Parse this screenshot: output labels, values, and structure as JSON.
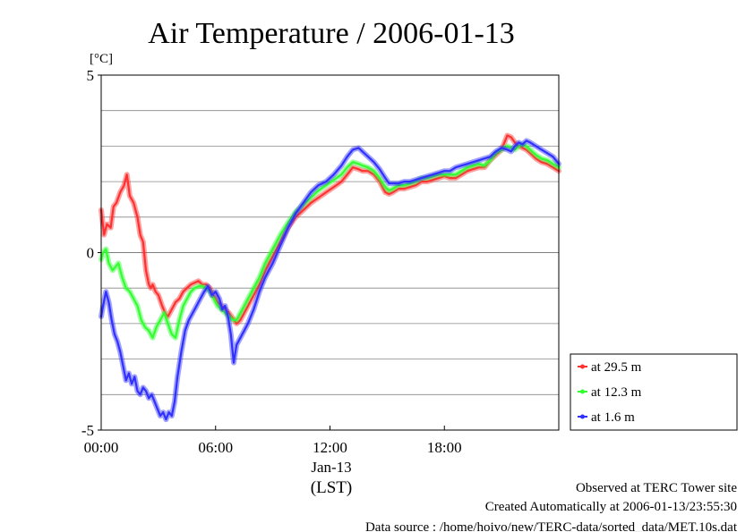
{
  "chart_data": {
    "type": "line",
    "title": "Air Temperature / 2006-01-13",
    "y_unit": "[°C]",
    "ylim": [
      -5,
      5
    ],
    "y_ticks": [
      "5",
      "0",
      "-5"
    ],
    "y_gridlines": [
      -4,
      -3,
      -2,
      -1,
      1,
      2,
      3,
      4
    ],
    "xlim": [
      0,
      24
    ],
    "x_ticks": [
      {
        "value": 0,
        "label": "00:00"
      },
      {
        "value": 6,
        "label": "06:00"
      },
      {
        "value": 12,
        "label": "12:00"
      },
      {
        "value": 18,
        "label": "18:00"
      }
    ],
    "x_date_label": "Jan-13",
    "xlabel": "(LST)",
    "grid": true,
    "legend_position": "right-bottom",
    "series": [
      {
        "name": "at 29.5 m",
        "color": "#ff3030",
        "x": [
          0.0,
          0.15,
          0.3,
          0.5,
          0.65,
          0.8,
          1.0,
          1.2,
          1.35,
          1.5,
          1.7,
          1.9,
          2.05,
          2.2,
          2.35,
          2.5,
          2.6,
          2.7,
          2.85,
          3.0,
          3.2,
          3.35,
          3.5,
          3.7,
          3.9,
          4.1,
          4.3,
          4.5,
          4.7,
          4.9,
          5.1,
          5.3,
          5.5,
          5.7,
          5.9,
          6.1,
          6.3,
          6.5,
          6.7,
          6.9,
          7.1,
          7.3,
          7.5,
          7.7,
          8.0,
          8.3,
          8.6,
          9.0,
          9.4,
          9.8,
          10.2,
          10.6,
          11.0,
          11.4,
          11.8,
          12.2,
          12.6,
          12.9,
          13.2,
          13.5,
          13.7,
          14.0,
          14.3,
          14.6,
          14.9,
          15.1,
          15.3,
          15.6,
          15.9,
          16.2,
          16.5,
          16.8,
          17.1,
          17.4,
          17.7,
          18.0,
          18.3,
          18.6,
          18.9,
          19.2,
          19.5,
          19.8,
          20.1,
          20.4,
          20.7,
          21.0,
          21.3,
          21.5,
          21.7,
          21.9,
          22.1,
          22.3,
          22.5,
          22.8,
          23.1,
          23.4,
          23.7,
          24.0
        ],
        "y": [
          1.2,
          0.5,
          0.8,
          0.7,
          1.3,
          1.4,
          1.7,
          1.9,
          2.2,
          1.6,
          1.4,
          1.0,
          0.5,
          0.3,
          -0.5,
          -0.9,
          -1.0,
          -0.9,
          -1.1,
          -1.2,
          -1.5,
          -1.7,
          -1.8,
          -1.6,
          -1.4,
          -1.3,
          -1.1,
          -1.0,
          -0.9,
          -0.85,
          -0.8,
          -0.9,
          -0.9,
          -1.0,
          -1.2,
          -1.4,
          -1.5,
          -1.6,
          -1.7,
          -1.85,
          -2.0,
          -1.9,
          -1.7,
          -1.5,
          -1.2,
          -0.9,
          -0.5,
          -0.1,
          0.3,
          0.7,
          1.0,
          1.2,
          1.4,
          1.55,
          1.7,
          1.85,
          2.0,
          2.2,
          2.4,
          2.35,
          2.3,
          2.3,
          2.2,
          2.0,
          1.7,
          1.65,
          1.7,
          1.8,
          1.8,
          1.85,
          1.9,
          2.0,
          2.0,
          2.05,
          2.1,
          2.15,
          2.1,
          2.1,
          2.2,
          2.3,
          2.35,
          2.4,
          2.4,
          2.6,
          2.75,
          2.9,
          3.3,
          3.25,
          3.1,
          3.0,
          2.95,
          2.9,
          2.8,
          2.65,
          2.55,
          2.5,
          2.4,
          2.3
        ]
      },
      {
        "name": "at 12.3 m",
        "color": "#30ff30",
        "x": [
          0.0,
          0.1,
          0.25,
          0.4,
          0.6,
          0.75,
          0.9,
          1.1,
          1.3,
          1.5,
          1.7,
          1.9,
          2.1,
          2.3,
          2.5,
          2.7,
          2.9,
          3.1,
          3.3,
          3.5,
          3.7,
          3.9,
          4.1,
          4.3,
          4.5,
          4.7,
          4.9,
          5.1,
          5.3,
          5.5,
          5.7,
          5.9,
          6.1,
          6.3,
          6.5,
          6.7,
          6.9,
          7.1,
          7.3,
          7.5,
          7.7,
          8.0,
          8.3,
          8.6,
          9.0,
          9.4,
          9.8,
          10.2,
          10.6,
          11.0,
          11.4,
          11.8,
          12.2,
          12.6,
          12.9,
          13.2,
          13.5,
          13.7,
          14.0,
          14.3,
          14.6,
          14.9,
          15.1,
          15.3,
          15.6,
          15.9,
          16.2,
          16.5,
          16.8,
          17.1,
          17.4,
          17.7,
          18.0,
          18.3,
          18.6,
          18.9,
          19.2,
          19.5,
          19.8,
          20.1,
          20.4,
          20.7,
          21.0,
          21.3,
          21.5,
          21.7,
          21.9,
          22.1,
          22.3,
          22.5,
          22.8,
          23.1,
          23.4,
          23.7,
          24.0
        ],
        "y": [
          -0.2,
          0.0,
          0.1,
          -0.3,
          -0.5,
          -0.4,
          -0.3,
          -0.7,
          -1.0,
          -1.1,
          -1.3,
          -1.5,
          -1.9,
          -2.1,
          -2.2,
          -2.4,
          -2.1,
          -1.9,
          -1.7,
          -2.0,
          -2.3,
          -2.4,
          -1.9,
          -1.5,
          -1.3,
          -1.1,
          -1.0,
          -0.95,
          -0.95,
          -1.0,
          -1.1,
          -1.3,
          -1.5,
          -1.6,
          -1.7,
          -1.8,
          -1.9,
          -1.9,
          -1.7,
          -1.5,
          -1.3,
          -1.0,
          -0.7,
          -0.3,
          0.1,
          0.5,
          0.85,
          1.15,
          1.35,
          1.55,
          1.75,
          1.9,
          2.05,
          2.2,
          2.4,
          2.55,
          2.5,
          2.45,
          2.4,
          2.3,
          2.1,
          1.85,
          1.75,
          1.8,
          1.9,
          1.9,
          1.95,
          2.0,
          2.1,
          2.1,
          2.15,
          2.2,
          2.2,
          2.2,
          2.2,
          2.3,
          2.4,
          2.45,
          2.5,
          2.45,
          2.6,
          2.8,
          2.9,
          3.0,
          2.95,
          2.9,
          3.0,
          3.05,
          3.0,
          2.9,
          2.75,
          2.65,
          2.6,
          2.5,
          2.4
        ]
      },
      {
        "name": "at 1.6 m",
        "color": "#3030ff",
        "x": [
          0.0,
          0.1,
          0.25,
          0.4,
          0.55,
          0.7,
          0.85,
          1.0,
          1.15,
          1.3,
          1.45,
          1.6,
          1.75,
          1.9,
          2.05,
          2.2,
          2.35,
          2.5,
          2.65,
          2.8,
          2.95,
          3.1,
          3.25,
          3.4,
          3.55,
          3.7,
          3.85,
          4.0,
          4.2,
          4.4,
          4.6,
          4.8,
          5.0,
          5.2,
          5.4,
          5.6,
          5.8,
          6.0,
          6.2,
          6.35,
          6.5,
          6.65,
          6.8,
          6.95,
          7.1,
          7.3,
          7.5,
          7.7,
          8.0,
          8.3,
          8.6,
          9.0,
          9.4,
          9.8,
          10.2,
          10.6,
          11.0,
          11.4,
          11.8,
          12.2,
          12.6,
          12.9,
          13.2,
          13.5,
          13.7,
          14.0,
          14.3,
          14.6,
          14.9,
          15.1,
          15.3,
          15.6,
          15.9,
          16.2,
          16.5,
          16.8,
          17.1,
          17.4,
          17.7,
          18.0,
          18.3,
          18.6,
          18.9,
          19.2,
          19.5,
          19.8,
          20.1,
          20.4,
          20.7,
          21.0,
          21.3,
          21.5,
          21.7,
          21.9,
          22.1,
          22.3,
          22.5,
          22.8,
          23.1,
          23.4,
          23.7,
          24.0
        ],
        "y": [
          -1.8,
          -1.5,
          -1.1,
          -1.4,
          -1.9,
          -2.3,
          -2.5,
          -2.8,
          -3.2,
          -3.6,
          -3.4,
          -3.7,
          -3.5,
          -3.9,
          -4.0,
          -3.8,
          -3.9,
          -4.1,
          -4.0,
          -4.2,
          -4.4,
          -4.6,
          -4.5,
          -4.7,
          -4.5,
          -4.6,
          -4.2,
          -3.5,
          -2.8,
          -2.2,
          -1.9,
          -1.7,
          -1.5,
          -1.3,
          -1.1,
          -0.95,
          -1.2,
          -1.1,
          -1.3,
          -1.6,
          -1.5,
          -1.8,
          -2.3,
          -3.1,
          -2.6,
          -2.4,
          -2.2,
          -2.0,
          -1.6,
          -1.1,
          -0.7,
          -0.3,
          0.2,
          0.7,
          1.1,
          1.4,
          1.7,
          1.9,
          2.0,
          2.2,
          2.45,
          2.7,
          2.9,
          2.95,
          2.85,
          2.7,
          2.55,
          2.35,
          2.1,
          1.95,
          1.95,
          1.95,
          2.0,
          2.0,
          2.05,
          2.1,
          2.15,
          2.2,
          2.25,
          2.3,
          2.3,
          2.4,
          2.45,
          2.5,
          2.55,
          2.6,
          2.65,
          2.7,
          2.85,
          2.95,
          2.9,
          2.85,
          3.0,
          3.1,
          3.05,
          3.15,
          3.1,
          3.0,
          2.9,
          2.8,
          2.7,
          2.5
        ]
      }
    ]
  },
  "footer": {
    "site": "Observed at TERC Tower site",
    "created": "Created Automatically at 2006-01-13/23:55:30",
    "source": "Data source : /home/hoivo/new/TERC-data/sorted_data/MET.10s.dat"
  }
}
